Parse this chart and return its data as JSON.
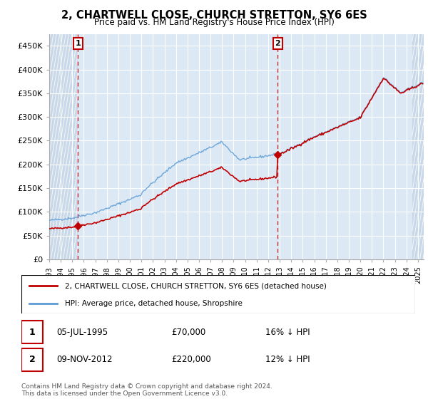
{
  "title": "2, CHARTWELL CLOSE, CHURCH STRETTON, SY6 6ES",
  "subtitle": "Price paid vs. HM Land Registry's House Price Index (HPI)",
  "legend_line1": "2, CHARTWELL CLOSE, CHURCH STRETTON, SY6 6ES (detached house)",
  "legend_line2": "HPI: Average price, detached house, Shropshire",
  "sale1_date": "05-JUL-1995",
  "sale1_price": 70000,
  "sale1_label": "16% ↓ HPI",
  "sale2_date": "09-NOV-2012",
  "sale2_price": 220000,
  "sale2_label": "12% ↓ HPI",
  "footnote": "Contains HM Land Registry data © Crown copyright and database right 2024.\nThis data is licensed under the Open Government Licence v3.0.",
  "hpi_color": "#5b9bd5",
  "price_color": "#c00000",
  "sale1_year": 1995.5,
  "sale2_year": 2012.833,
  "xlim_start": 1993.0,
  "xlim_end": 2025.5,
  "ylim": [
    0,
    475000
  ],
  "yticks": [
    0,
    50000,
    100000,
    150000,
    200000,
    250000,
    300000,
    350000,
    400000,
    450000
  ],
  "ytick_labels": [
    "£0",
    "£50K",
    "£100K",
    "£150K",
    "£200K",
    "£250K",
    "£300K",
    "£350K",
    "£400K",
    "£450K"
  ],
  "hpi_seed": 42,
  "hpi_base": 82000,
  "bg_hatch_color": "#d8d8d8",
  "plot_bg_color": "#dce9f5",
  "hatch_bg_color": "#e8e8e8"
}
